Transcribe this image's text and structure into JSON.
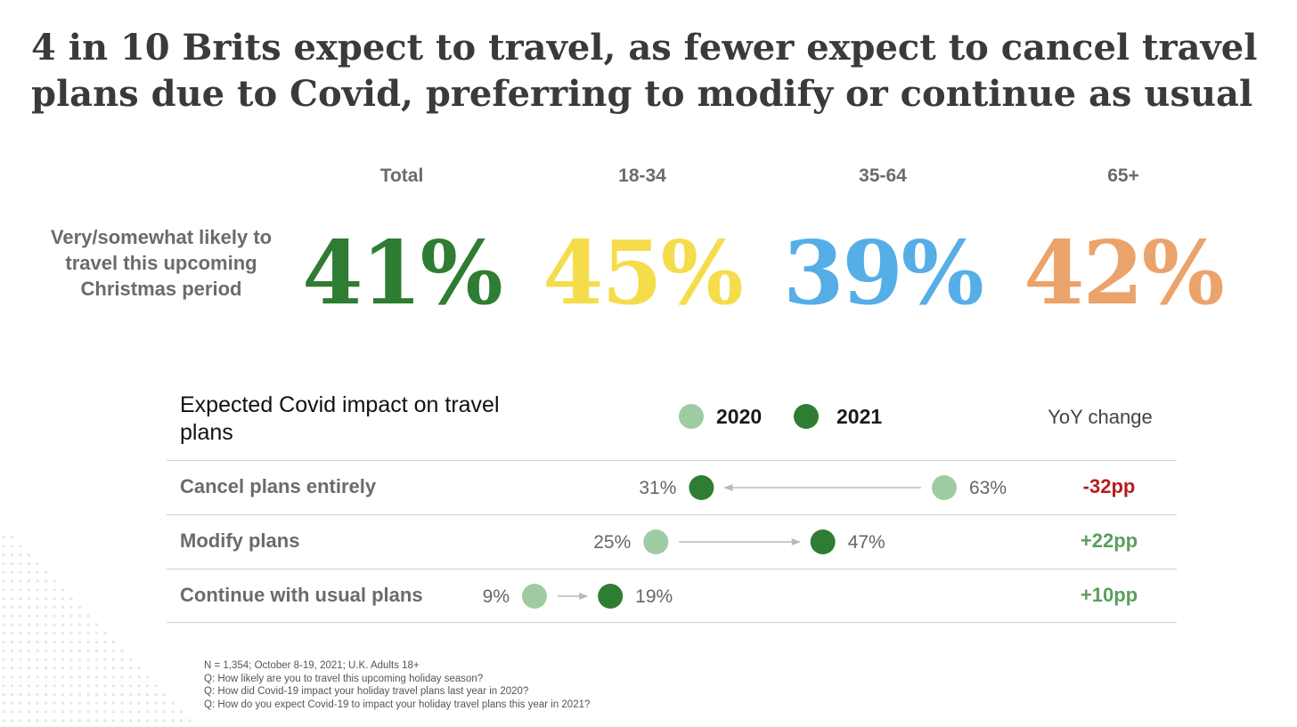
{
  "title": "4 in 10 Brits expect to travel, as fewer expect to cancel travel plans due to Covid, preferring to modify or continue as usual",
  "travel_likelihood": {
    "label": "Very/somewhat likely to travel this upcoming Christmas period",
    "segments": [
      {
        "name": "Total",
        "value": "41%",
        "color": "#2e7d32"
      },
      {
        "name": "18-34",
        "value": "45%",
        "color": "#f5dc4a"
      },
      {
        "name": "35-64",
        "value": "39%",
        "color": "#55aee6"
      },
      {
        "name": "65+",
        "value": "42%",
        "color": "#eba36c"
      }
    ]
  },
  "chart_data": {
    "type": "scatter",
    "title": "Expected Covid impact on travel plans",
    "categories": [
      "Cancel plans entirely",
      "Modify plans",
      "Continue with usual plans"
    ],
    "series": [
      {
        "name": "2020",
        "values": [
          63,
          25,
          9
        ],
        "color": "#9fcba3"
      },
      {
        "name": "2021",
        "values": [
          31,
          47,
          19
        ],
        "color": "#2e7d32"
      }
    ],
    "value_labels_2020": [
      "63%",
      "25%",
      "9%"
    ],
    "value_labels_2021": [
      "31%",
      "47%",
      "19%"
    ],
    "yoy_header": "YoY change",
    "yoy": [
      "-32pp",
      "+22pp",
      "+10pp"
    ],
    "yoy_colors": [
      "#b71c1c",
      "#5a9e5e",
      "#5a9e5e"
    ],
    "xlim": [
      0,
      70
    ]
  },
  "notes": [
    "N = 1,354; October 8-19, 2021; U.K. Adults 18+",
    "Q: How likely are you to travel this upcoming holiday season?",
    "Q: How did Covid-19 impact your holiday travel plans last year in 2020?",
    "Q: How do you expect Covid-19 to impact your holiday travel plans this year in 2021?"
  ]
}
